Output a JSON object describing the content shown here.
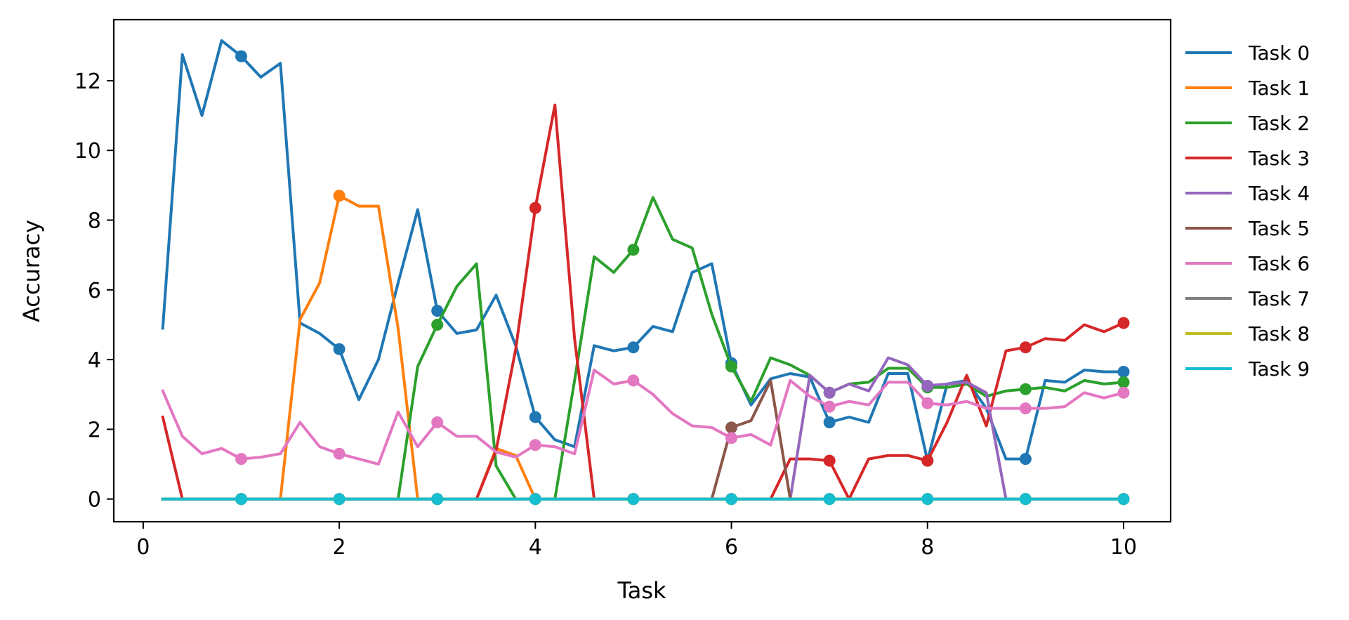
{
  "chart_data": {
    "type": "line",
    "xlabel": "Task",
    "ylabel": "Accuracy",
    "xlim": [
      -0.3,
      10.48
    ],
    "ylim": [
      -0.65,
      13.75
    ],
    "xticks": [
      0,
      2,
      4,
      6,
      8,
      10
    ],
    "yticks": [
      0,
      2,
      4,
      6,
      8,
      10,
      12
    ],
    "grid": false,
    "legend_position": "outside-right",
    "x": [
      0.2,
      0.4,
      0.6,
      0.8,
      1.0,
      1.2,
      1.4,
      1.6,
      1.8,
      2.0,
      2.2,
      2.4,
      2.6,
      2.8,
      3.0,
      3.2,
      3.4,
      3.6,
      3.8,
      4.0,
      4.2,
      4.4,
      4.6,
      4.8,
      5.0,
      5.2,
      5.4,
      5.6,
      5.8,
      6.0,
      6.2,
      6.4,
      6.6,
      6.8,
      7.0,
      7.2,
      7.4,
      7.6,
      7.8,
      8.0,
      8.2,
      8.4,
      8.6,
      8.8,
      9.0,
      9.2,
      9.4,
      9.6,
      9.8,
      10.0
    ],
    "marker_x": [
      1,
      2,
      3,
      4,
      5,
      6,
      7,
      8,
      9,
      10
    ],
    "series": [
      {
        "name": "Task 0",
        "color": "#1f77b4",
        "values": [
          4.9,
          12.75,
          11.0,
          13.15,
          12.7,
          12.1,
          12.5,
          5.05,
          4.75,
          4.3,
          2.85,
          4.0,
          6.2,
          8.3,
          5.4,
          4.75,
          4.85,
          5.85,
          4.4,
          2.35,
          1.7,
          1.5,
          4.4,
          4.25,
          4.35,
          4.95,
          4.8,
          6.5,
          6.75,
          3.9,
          2.7,
          3.45,
          3.6,
          3.5,
          2.2,
          2.35,
          2.2,
          3.6,
          3.6,
          1.1,
          3.3,
          3.4,
          2.6,
          1.15,
          1.15,
          3.4,
          3.35,
          3.7,
          3.65,
          3.65
        ]
      },
      {
        "name": "Task 1",
        "color": "#ff7f0e",
        "values": [
          0,
          0,
          0,
          0,
          0,
          0,
          0,
          5.15,
          6.2,
          8.7,
          8.4,
          8.4,
          4.9,
          0,
          0,
          0,
          0,
          1.45,
          1.25,
          0,
          0,
          0,
          0,
          0,
          0,
          0,
          0,
          0,
          0,
          0,
          0,
          0,
          0,
          0,
          0,
          0,
          0,
          0,
          0,
          0,
          0,
          0,
          0,
          0,
          0,
          0,
          0,
          0,
          0,
          0
        ]
      },
      {
        "name": "Task 2",
        "color": "#2ca02c",
        "values": [
          0,
          0,
          0,
          0,
          0,
          0,
          0,
          0,
          0,
          0,
          0,
          0,
          0,
          3.8,
          5.0,
          6.1,
          6.75,
          0.95,
          0,
          0,
          0,
          3.4,
          6.95,
          6.5,
          7.15,
          8.65,
          7.45,
          7.2,
          5.3,
          3.8,
          2.8,
          4.05,
          3.85,
          3.55,
          3.05,
          3.3,
          3.35,
          3.75,
          3.75,
          3.2,
          3.2,
          3.3,
          2.95,
          3.1,
          3.15,
          3.2,
          3.1,
          3.4,
          3.3,
          3.35
        ]
      },
      {
        "name": "Task 3",
        "color": "#d62728",
        "values": [
          2.35,
          0,
          0,
          0,
          0,
          0,
          0,
          0,
          0,
          0,
          0,
          0,
          0,
          0,
          0,
          0,
          0,
          1.4,
          4.3,
          8.35,
          11.3,
          4.6,
          0,
          0,
          0,
          0,
          0,
          0,
          0,
          0,
          0,
          0,
          1.15,
          1.15,
          1.1,
          0,
          1.15,
          1.25,
          1.25,
          1.1,
          2.2,
          3.55,
          2.1,
          4.25,
          4.35,
          4.6,
          4.55,
          5.0,
          4.8,
          5.05
        ]
      },
      {
        "name": "Task 4",
        "color": "#9467bd",
        "values": [
          0,
          0,
          0,
          0,
          0,
          0,
          0,
          0,
          0,
          0,
          0,
          0,
          0,
          0,
          0,
          0,
          0,
          0,
          0,
          0,
          0,
          0,
          0,
          0,
          0,
          0,
          0,
          0,
          0,
          0,
          0,
          0,
          0,
          3.55,
          3.05,
          3.3,
          3.1,
          4.05,
          3.85,
          3.25,
          3.3,
          3.35,
          3.05,
          0,
          0,
          0,
          0,
          0,
          0,
          0
        ]
      },
      {
        "name": "Task 5",
        "color": "#8c564b",
        "values": [
          0,
          0,
          0,
          0,
          0,
          0,
          0,
          0,
          0,
          0,
          0,
          0,
          0,
          0,
          0,
          0,
          0,
          0,
          0,
          0,
          0,
          0,
          0,
          0,
          0,
          0,
          0,
          0,
          0,
          2.05,
          2.25,
          3.4,
          0,
          0,
          0,
          0,
          0,
          0,
          0,
          0,
          0,
          0,
          0,
          0,
          0,
          0,
          0,
          0,
          0,
          0
        ]
      },
      {
        "name": "Task 6",
        "color": "#e377c2",
        "values": [
          3.1,
          1.8,
          1.3,
          1.45,
          1.15,
          1.2,
          1.3,
          2.2,
          1.5,
          1.3,
          1.15,
          1.0,
          2.5,
          1.5,
          2.2,
          1.8,
          1.8,
          1.35,
          1.2,
          1.55,
          1.5,
          1.3,
          3.7,
          3.3,
          3.4,
          3.0,
          2.45,
          2.1,
          2.05,
          1.75,
          1.85,
          1.55,
          3.4,
          2.95,
          2.65,
          2.8,
          2.7,
          3.35,
          3.35,
          2.75,
          2.7,
          2.8,
          2.6,
          2.6,
          2.6,
          2.6,
          2.65,
          3.05,
          2.9,
          3.05
        ]
      },
      {
        "name": "Task 7",
        "color": "#7f7f7f",
        "values": [
          0,
          0,
          0,
          0,
          0,
          0,
          0,
          0,
          0,
          0,
          0,
          0,
          0,
          0,
          0,
          0,
          0,
          0,
          0,
          0,
          0,
          0,
          0,
          0,
          0,
          0,
          0,
          0,
          0,
          0,
          0,
          0,
          0,
          0,
          0,
          0,
          0,
          0,
          0,
          0,
          0,
          0,
          0,
          0,
          0,
          0,
          0,
          0,
          0,
          0
        ]
      },
      {
        "name": "Task 8",
        "color": "#bcbd22",
        "values": [
          0,
          0,
          0,
          0,
          0,
          0,
          0,
          0,
          0,
          0,
          0,
          0,
          0,
          0,
          0,
          0,
          0,
          0,
          0,
          0,
          0,
          0,
          0,
          0,
          0,
          0,
          0,
          0,
          0,
          0,
          0,
          0,
          0,
          0,
          0,
          0,
          0,
          0,
          0,
          0,
          0,
          0,
          0,
          0,
          0,
          0,
          0,
          0,
          0,
          0
        ]
      },
      {
        "name": "Task 9",
        "color": "#17becf",
        "values": [
          0,
          0,
          0,
          0,
          0,
          0,
          0,
          0,
          0,
          0,
          0,
          0,
          0,
          0,
          0,
          0,
          0,
          0,
          0,
          0,
          0,
          0,
          0,
          0,
          0,
          0,
          0,
          0,
          0,
          0,
          0,
          0,
          0,
          0,
          0,
          0,
          0,
          0,
          0,
          0,
          0,
          0,
          0,
          0,
          0,
          0,
          0,
          0,
          0,
          0
        ]
      }
    ]
  }
}
